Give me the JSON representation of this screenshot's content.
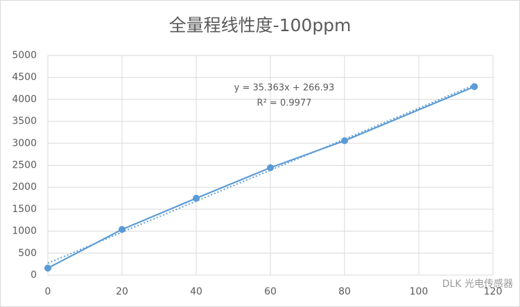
{
  "chart_data": {
    "type": "scatter-line",
    "title": "全量程线性度-100ppm",
    "x": [
      0,
      20,
      40,
      60,
      80,
      115
    ],
    "series": [
      {
        "color": "#5b9bd5",
        "values": [
          160,
          1040,
          1750,
          2445,
          3060,
          4290
        ]
      }
    ],
    "trendline": true,
    "annotations": [
      "y = 35.363x + 266.93",
      "R² = 0.9977"
    ],
    "xlim": [
      0,
      120
    ],
    "xticks": [
      0,
      20,
      40,
      60,
      80,
      100,
      120
    ],
    "ylim": [
      0,
      5000
    ],
    "yticks": [
      0,
      500,
      1000,
      1500,
      2000,
      2500,
      3000,
      3500,
      4000,
      4500,
      5000
    ],
    "grid": true
  },
  "watermark": "DLK 光电传感器"
}
